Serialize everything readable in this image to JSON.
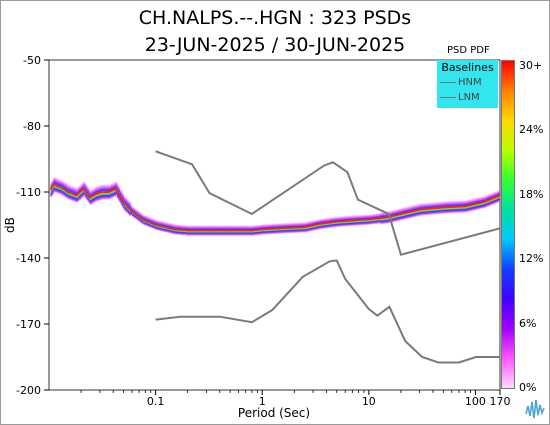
{
  "chart_data": {
    "type": "heatmap",
    "title": "CH.NALPS.--.HGN : 323 PSDs",
    "subtitle": "23-JUN-2025 / 30-JUN-2025",
    "xlabel": "Period (Sec)",
    "ylabel": "dB",
    "x_scale": "log",
    "xlim": [
      0.01,
      170
    ],
    "ylim": [
      -200,
      -50
    ],
    "x_ticks": [
      {
        "value": 0.1,
        "label": "0.1"
      },
      {
        "value": 1,
        "label": "1"
      },
      {
        "value": 10,
        "label": "10"
      },
      {
        "value": 100,
        "label": "100"
      },
      {
        "value": 170,
        "label": "170"
      }
    ],
    "y_ticks": [
      {
        "value": -50,
        "label": "-50"
      },
      {
        "value": -80,
        "label": "-80"
      },
      {
        "value": -110,
        "label": "-110"
      },
      {
        "value": -140,
        "label": "-140"
      },
      {
        "value": -170,
        "label": "-170"
      },
      {
        "value": -200,
        "label": "-200"
      }
    ],
    "grid": false,
    "legend": {
      "title": "Baselines",
      "entries": [
        "HNM",
        "LNM"
      ],
      "placement": "top-right",
      "background": "#33e6ee"
    },
    "colorbar": {
      "title": "PSD PDF",
      "labels": [
        "30+",
        "24%",
        "18%",
        "12%",
        "6%",
        "0%"
      ],
      "colors": [
        "#ff0000",
        "#ff8000",
        "#ffd800",
        "#b8ff00",
        "#33ff33",
        "#00e0a0",
        "#00c8ff",
        "#1040ff",
        "#4000ff",
        "#a000ff",
        "#ff55ff",
        "#ffd8ff"
      ]
    },
    "series": [
      {
        "name": "HNM",
        "color": "#7a7a7a",
        "x": [
          0.1,
          0.22,
          0.32,
          0.8,
          3.8,
          4.6,
          6.3,
          7.9,
          15.4,
          20,
          170
        ],
        "y": [
          -91.5,
          -97.4,
          -110.5,
          -120.0,
          -98.0,
          -96.5,
          -101.0,
          -113.5,
          -120.0,
          -138.5,
          -126.5
        ]
      },
      {
        "name": "LNM",
        "color": "#7a7a7a",
        "x": [
          0.1,
          0.17,
          0.4,
          0.8,
          1.24,
          2.4,
          4.3,
          5.0,
          6.0,
          10.0,
          12.0,
          15.6,
          21.9,
          31.6,
          45.0,
          70.0,
          101.0,
          170.0
        ],
        "y": [
          -168.0,
          -166.7,
          -166.7,
          -169.2,
          -163.7,
          -148.6,
          -141.5,
          -141.1,
          -149.5,
          -163.2,
          -166.2,
          -162.2,
          -177.7,
          -185.0,
          -187.5,
          -187.5,
          -185.0,
          -185.0
        ]
      },
      {
        "name": "PSD mode",
        "x": [
          0.0103,
          0.011,
          0.0115,
          0.013,
          0.015,
          0.018,
          0.021,
          0.024,
          0.027,
          0.031,
          0.036,
          0.042,
          0.05,
          0.06,
          0.075,
          0.1,
          0.15,
          0.2,
          0.4,
          0.8,
          1.0,
          1.5,
          2.5,
          3.5,
          5.0,
          7.0,
          10.0,
          15.0,
          20.0,
          30.0,
          50.0,
          80.0,
          120.0,
          170.0
        ],
        "y": [
          -109.0,
          -106.6,
          -107.0,
          -108.0,
          -110.0,
          -111.5,
          -108.5,
          -112.5,
          -111.0,
          -110.0,
          -110.0,
          -108.5,
          -115.0,
          -119.0,
          -122.5,
          -125.0,
          -127.0,
          -127.5,
          -127.5,
          -127.5,
          -127.0,
          -126.5,
          -126.0,
          -124.5,
          -123.5,
          -123.0,
          -122.5,
          -121.5,
          -120.0,
          -118.0,
          -117.0,
          -116.5,
          -114.5,
          -111.5
        ]
      }
    ]
  }
}
